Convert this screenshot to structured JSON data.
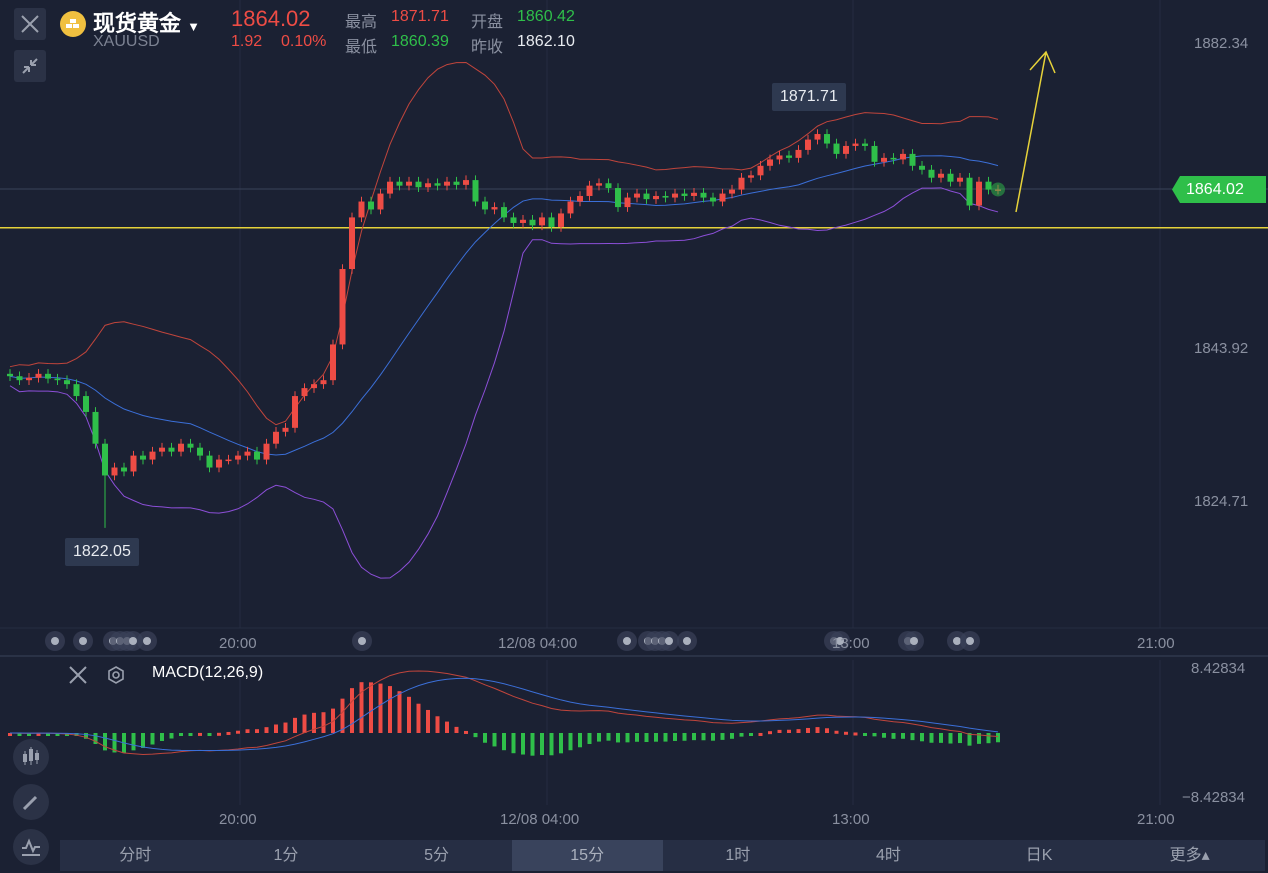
{
  "header": {
    "title": "现货黄金",
    "symbol": "XAUUSD",
    "price": "1864.02",
    "change": "1.92",
    "change_pct": "0.10%",
    "high_label": "最高",
    "high": "1871.71",
    "open_label": "开盘",
    "open": "1860.42",
    "low_label": "最低",
    "low": "1860.39",
    "prev_close_label": "昨收",
    "prev_close": "1862.10"
  },
  "price_axis": [
    "1882.34",
    "1843.92",
    "1824.71"
  ],
  "current_price_tag": "1864.02",
  "annotations": {
    "high_tip": "1871.71",
    "low_tip": "1822.05"
  },
  "time_axis": [
    "20:00",
    "12/08 04:00",
    "13:00",
    "21:00"
  ],
  "macd": {
    "label": "MACD(12,26,9)",
    "axis_top": "8.42834",
    "axis_bottom": "−8.42834"
  },
  "tabs": [
    "分时",
    "1分",
    "5分",
    "15分",
    "1时",
    "4时",
    "日K",
    "更多▴"
  ],
  "active_tab": "15分",
  "colors": {
    "up": "#ee4c45",
    "down": "#2fbf4a",
    "mid": "#3b6fd8",
    "lower": "#8c4fd8",
    "upper": "#c0453c",
    "hline": "#e6d23a"
  },
  "chart_data": {
    "type": "candlestick",
    "price_range": [
      1819,
      1888
    ],
    "closes": [
      1840.5,
      1840,
      1840.3,
      1840.8,
      1840.2,
      1840,
      1839.5,
      1838,
      1836,
      1832,
      1828,
      1829,
      1828.5,
      1830.5,
      1830,
      1831,
      1831.5,
      1831,
      1832,
      1831.5,
      1830.5,
      1829,
      1830,
      1830,
      1830.5,
      1831,
      1830,
      1832,
      1833.5,
      1834,
      1838,
      1839,
      1839.5,
      1840,
      1844.5,
      1854,
      1860.5,
      1862.5,
      1861.5,
      1863.5,
      1865,
      1864.5,
      1865,
      1864.3,
      1864.8,
      1864.5,
      1865,
      1864.6,
      1865.2,
      1862.5,
      1861.5,
      1861.8,
      1860.5,
      1859.8,
      1860.2,
      1859.5,
      1860.5,
      1859.3,
      1861,
      1862.5,
      1863.2,
      1864.5,
      1864.8,
      1864.2,
      1861.8,
      1863,
      1863.5,
      1862.8,
      1863.2,
      1863,
      1863.5,
      1863.2,
      1863.6,
      1863,
      1862.5,
      1863.5,
      1864,
      1865.5,
      1865.8,
      1867,
      1867.8,
      1868.3,
      1868,
      1869,
      1870.3,
      1871,
      1869.8,
      1868.5,
      1869.5,
      1869.8,
      1869.5,
      1867.5,
      1868,
      1867.8,
      1868.5,
      1867,
      1866.5,
      1865.5,
      1866,
      1865,
      1865.5,
      1862,
      1865,
      1864,
      1864.02
    ],
    "horizontal_line": 1859.2
  }
}
